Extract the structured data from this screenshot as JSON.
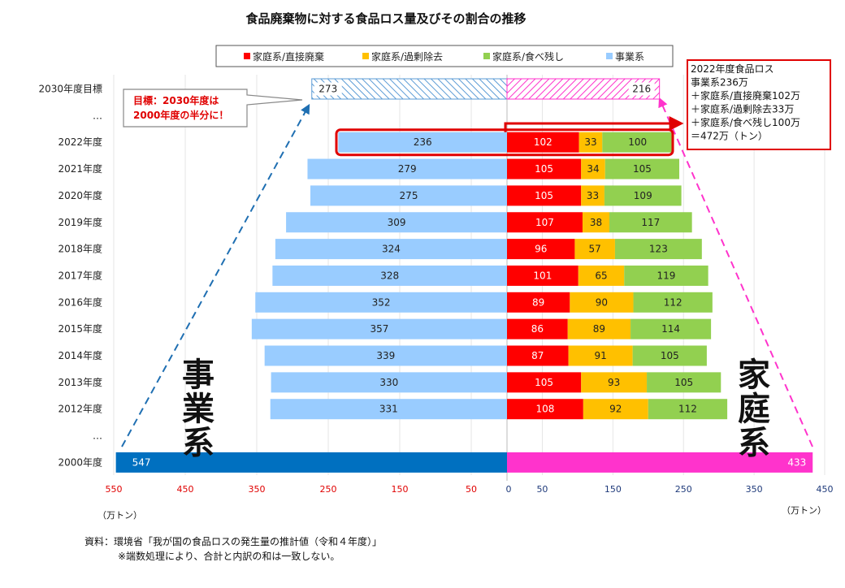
{
  "chart_data": {
    "type": "bar",
    "title": "食品廃棄物に対する食品ロス量及びその割合の推移",
    "legend": [
      "家庭系/直接廃棄",
      "家庭系/過剰除去",
      "家庭系/食べ残し",
      "事業系"
    ],
    "legend_placement": "top",
    "categories": [
      "2030年度目標",
      "…",
      "2022年度",
      "2021年度",
      "2020年度",
      "2019年度",
      "2018年度",
      "2017年度",
      "2016年度",
      "2015年度",
      "2014年度",
      "2013年度",
      "2012年度",
      "…",
      "2000年度"
    ],
    "series": [
      {
        "name": "事業系",
        "values": [
          273,
          null,
          236,
          279,
          275,
          309,
          324,
          328,
          352,
          357,
          339,
          330,
          331,
          null,
          547
        ]
      },
      {
        "name": "家庭系/直接廃棄",
        "values": [
          null,
          null,
          102,
          105,
          105,
          107,
          96,
          101,
          89,
          86,
          87,
          105,
          108,
          null,
          null
        ]
      },
      {
        "name": "家庭系/過剰除去",
        "values": [
          null,
          null,
          33,
          34,
          33,
          38,
          57,
          65,
          90,
          89,
          91,
          93,
          92,
          null,
          null
        ]
      },
      {
        "name": "家庭系/食べ残し",
        "values": [
          null,
          null,
          100,
          105,
          109,
          117,
          123,
          119,
          112,
          114,
          105,
          105,
          112,
          null,
          null
        ]
      }
    ],
    "household_totals": {
      "2030年度目標": 216,
      "2000年度": 433
    },
    "left_ticks": [
      "550",
      "450",
      "350",
      "250",
      "150",
      "50"
    ],
    "right_ticks": [
      "0",
      "50",
      "150",
      "250",
      "350",
      "450"
    ],
    "xlim_left": [
      0,
      550
    ],
    "xlim_right": [
      0,
      450
    ],
    "x_unit_left": "（万トン）",
    "x_unit_right": "（万トン）",
    "side_label_left": "事業系",
    "side_label_right": "家庭系",
    "colors": {
      "business": "#99ccff",
      "business_2000": "#0070c0",
      "direct": "#ff0000",
      "excess": "#ffc000",
      "leftover": "#92d050",
      "household_2000": "#ff33cc",
      "target_left_hatch": "#5b9bd5",
      "target_right_hatch": "#ff33cc",
      "highlight": "#e00000"
    }
  },
  "callout": {
    "line1": "目標：2030年度は",
    "line2": "2000年度の半分に！"
  },
  "summary_box": {
    "lines": [
      "2022年度食品ロス",
      "事業系236万",
      "＋家庭系/直接廃棄102万",
      "＋家庭系/過剰除去33万",
      "＋家庭系/食べ残し100万",
      "＝472万（トン）"
    ]
  },
  "source": {
    "line1": "資料：環境省「我が国の食品ロスの発生量の推計値（令和４年度）」",
    "line2": "※端数処理により、合計と内訳の和は一致しない。"
  }
}
